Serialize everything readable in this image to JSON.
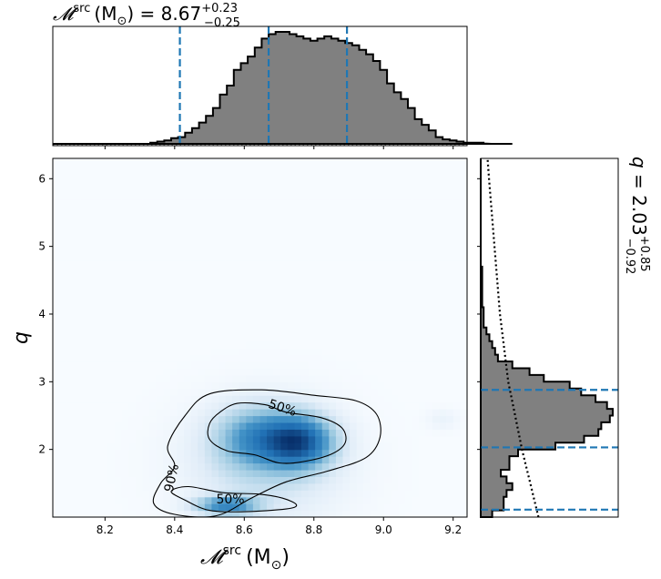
{
  "chart_data": {
    "type": "corner-plot",
    "parameters": [
      {
        "name": "mchirp_src",
        "label": "𝓜",
        "label_sup": "src",
        "unit": "(M",
        "unit_sub": "⊙",
        "unit_close": ")",
        "title_eq": " = 8.67",
        "title_sup": "+0.23",
        "title_sub": "−0.25",
        "range": [
          8.05,
          9.24
        ],
        "ticks": [
          "8.2",
          "8.4",
          "8.6",
          "8.8",
          "9.0",
          "9.2"
        ],
        "median": 8.67,
        "lower": 8.415,
        "upper": 8.895
      },
      {
        "name": "q",
        "label": "q",
        "title_eq": " = 2.03",
        "title_sup": "+0.85",
        "title_sub": "−0.92",
        "range": [
          1.0,
          6.3
        ],
        "ticks": [
          "2",
          "3",
          "4",
          "5",
          "6"
        ],
        "median": 2.03,
        "lower": 1.11,
        "upper": 2.88
      }
    ],
    "hist_mchirp": {
      "bin_start": 8.05,
      "bin_width": 0.02,
      "counts": [
        0,
        0,
        0,
        0,
        0,
        0,
        0,
        0,
        0,
        0,
        0,
        0,
        0,
        0,
        1,
        2,
        3,
        5,
        6,
        10,
        14,
        19,
        25,
        32,
        44,
        52,
        66,
        72,
        78,
        86,
        94,
        98,
        100,
        100,
        98,
        96,
        94,
        92,
        94,
        96,
        94,
        92,
        90,
        88,
        84,
        80,
        74,
        66,
        54,
        46,
        40,
        32,
        22,
        17,
        12,
        6,
        4,
        3,
        2,
        1,
        0,
        0,
        1,
        0,
        0,
        0,
        0
      ]
    },
    "hist_q": {
      "bin_start": 1.0,
      "bin_width": 0.1,
      "counts": [
        8,
        16,
        16,
        18,
        22,
        18,
        14,
        20,
        20,
        26,
        52,
        72,
        82,
        84,
        90,
        92,
        88,
        80,
        70,
        62,
        44,
        34,
        22,
        12,
        10,
        8,
        6,
        4,
        2,
        2,
        2,
        1,
        1,
        1,
        1,
        1,
        1,
        0,
        0,
        0,
        0,
        0,
        0,
        0,
        0,
        0,
        0,
        0,
        0,
        0,
        0,
        0,
        0
      ]
    },
    "prior_q": {
      "q": [
        1.0,
        1.5,
        2.0,
        2.5,
        3.0,
        3.5,
        4.0,
        4.5,
        5.0,
        5.5,
        6.0,
        6.3
      ],
      "density": [
        0.42,
        0.36,
        0.3,
        0.25,
        0.2,
        0.17,
        0.14,
        0.12,
        0.1,
        0.08,
        0.06,
        0.05
      ]
    },
    "density_blobs": [
      {
        "x": 8.76,
        "y": 2.12,
        "sx": 0.065,
        "sy": 0.26,
        "w": 1.0
      },
      {
        "x": 8.64,
        "y": 2.18,
        "sx": 0.08,
        "sy": 0.3,
        "w": 0.6
      },
      {
        "x": 8.55,
        "y": 1.18,
        "sx": 0.06,
        "sy": 0.09,
        "w": 0.75
      },
      {
        "x": 8.66,
        "y": 1.8,
        "sx": 0.14,
        "sy": 0.55,
        "w": 0.25
      },
      {
        "x": 9.17,
        "y": 2.45,
        "sx": 0.03,
        "sy": 0.1,
        "w": 0.07
      }
    ],
    "contours": [
      {
        "level": "50%",
        "points": [
          [
            8.53,
            2.55
          ],
          [
            8.58,
            2.68
          ],
          [
            8.66,
            2.66
          ],
          [
            8.72,
            2.55
          ],
          [
            8.82,
            2.47
          ],
          [
            8.88,
            2.32
          ],
          [
            8.89,
            2.1
          ],
          [
            8.85,
            1.93
          ],
          [
            8.77,
            1.82
          ],
          [
            8.7,
            1.8
          ],
          [
            8.63,
            1.92
          ],
          [
            8.55,
            1.98
          ],
          [
            8.5,
            2.15
          ],
          [
            8.5,
            2.38
          ]
        ],
        "label_x": 8.71,
        "label_y": 2.62
      },
      {
        "level": "50%",
        "points": [
          [
            8.39,
            1.38
          ],
          [
            8.44,
            1.45
          ],
          [
            8.54,
            1.36
          ],
          [
            8.64,
            1.34
          ],
          [
            8.71,
            1.28
          ],
          [
            8.75,
            1.18
          ],
          [
            8.72,
            1.12
          ],
          [
            8.6,
            1.08
          ],
          [
            8.5,
            1.1
          ],
          [
            8.43,
            1.25
          ]
        ],
        "label_x": 8.56,
        "label_y": 1.27
      },
      {
        "level": "90%",
        "points": [
          [
            8.43,
            2.5
          ],
          [
            8.5,
            2.82
          ],
          [
            8.65,
            2.88
          ],
          [
            8.8,
            2.8
          ],
          [
            8.92,
            2.72
          ],
          [
            8.98,
            2.52
          ],
          [
            8.99,
            2.18
          ],
          [
            8.95,
            1.88
          ],
          [
            8.84,
            1.68
          ],
          [
            8.72,
            1.52
          ],
          [
            8.62,
            1.28
          ],
          [
            8.52,
            1.02
          ],
          [
            8.4,
            1.04
          ],
          [
            8.34,
            1.2
          ],
          [
            8.36,
            1.5
          ],
          [
            8.4,
            1.75
          ],
          [
            8.38,
            2.05
          ]
        ],
        "label_x": 8.39,
        "label_y": 1.58
      }
    ]
  }
}
